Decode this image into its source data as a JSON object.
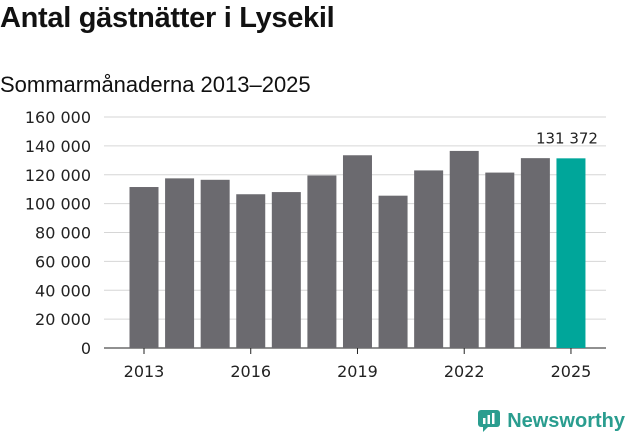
{
  "title": "Antal gästnätter i Lysekil",
  "subtitle": "Sommarmånaderna 2013–2025",
  "brand": {
    "name": "Newsworthy",
    "icon": "newsworthy-logo-icon",
    "color": "#2a9d8f"
  },
  "chart_data": {
    "type": "bar",
    "categories": [
      "2013",
      "2014",
      "2015",
      "2016",
      "2017",
      "2018",
      "2019",
      "2020",
      "2021",
      "2022",
      "2023",
      "2024",
      "2025"
    ],
    "values": [
      111500,
      117500,
      116500,
      106500,
      108000,
      119500,
      133500,
      105500,
      123000,
      136500,
      121500,
      131500,
      131372
    ],
    "x_tick_labels": [
      "2013",
      "2016",
      "2019",
      "2022",
      "2025"
    ],
    "y_tick_labels": [
      "0",
      "20 000",
      "40 000",
      "60 000",
      "80 000",
      "100 000",
      "120 000",
      "140 000",
      "160 000"
    ],
    "ylim": [
      0,
      160000
    ],
    "y_step": 20000,
    "grid": true,
    "bar_color": "#6b6a6f",
    "highlight_color": "#00a69a",
    "highlight_index": 12,
    "annotation": {
      "index": 12,
      "text": "131 372"
    }
  }
}
